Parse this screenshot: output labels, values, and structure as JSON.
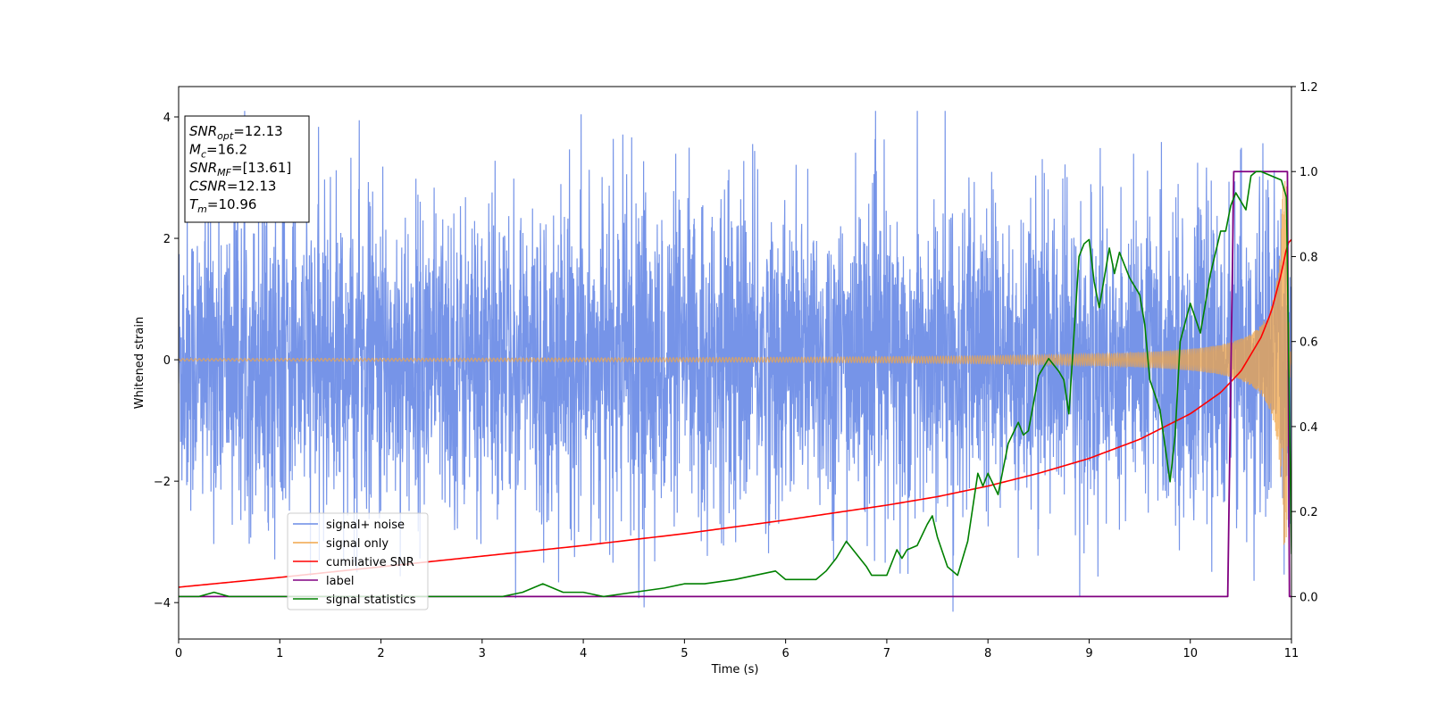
{
  "chart_data": {
    "type": "line",
    "xlabel": "Time (s)",
    "ylabel": "Whitened strain",
    "xlim": [
      0,
      11
    ],
    "ylim": [
      -4.6,
      4.5
    ],
    "y2lim": [
      -0.1,
      1.2
    ],
    "grid": false,
    "legend_position": "lower-left",
    "x_ticks": [
      "0",
      "1",
      "2",
      "3",
      "4",
      "5",
      "6",
      "7",
      "8",
      "9",
      "10",
      "11"
    ],
    "y_ticks": [
      "-4",
      "-2",
      "0",
      "2",
      "4"
    ],
    "y2_ticks": [
      "0.0",
      "0.2",
      "0.4",
      "0.6",
      "0.8",
      "1.0",
      "1.2"
    ],
    "info_box": [
      {
        "base": "SNR",
        "sub": "opt",
        "rest": "=12.13"
      },
      {
        "base": "M",
        "sub": "c",
        "rest": "=16.2"
      },
      {
        "base": "SNR",
        "sub": "MF",
        "rest": "=[13.61]"
      },
      {
        "base": "CSNR",
        "sub": "",
        "rest": "=12.13"
      },
      {
        "base": "T",
        "sub": "m",
        "rest": "=10.96"
      }
    ],
    "series": [
      {
        "name": "signal+ noise",
        "color": "#6a8be6",
        "axis": "left",
        "envelope": {
          "band_sigma": 1.25,
          "spike_max": 4.1,
          "spike_min": -4.15
        }
      },
      {
        "name": "signal only",
        "color": "#f0a64a",
        "axis": "left",
        "chirp": {
          "amp_start": 0.02,
          "amp_end": 3.05,
          "t_merger": 10.96
        }
      },
      {
        "name": "cumilative SNR",
        "color": "#ff0000",
        "axis": "right",
        "x": [
          0,
          1,
          2,
          3,
          4,
          5,
          6,
          7,
          7.5,
          8,
          8.5,
          9,
          9.5,
          10,
          10.3,
          10.5,
          10.7,
          10.8,
          10.9,
          10.96,
          11
        ],
        "y": [
          0.022,
          0.045,
          0.07,
          0.095,
          0.12,
          0.148,
          0.18,
          0.215,
          0.235,
          0.26,
          0.29,
          0.325,
          0.37,
          0.43,
          0.48,
          0.53,
          0.61,
          0.67,
          0.76,
          0.83,
          0.84
        ]
      },
      {
        "name": "label",
        "color": "#800080",
        "axis": "right",
        "x": [
          0,
          10.37,
          10.43,
          10.96,
          10.98,
          11
        ],
        "y": [
          0,
          0,
          1,
          1,
          0,
          0
        ]
      },
      {
        "name": "signal statistics",
        "color": "#008000",
        "axis": "right",
        "x": [
          0,
          0.2,
          0.35,
          0.5,
          0.8,
          1.2,
          1.6,
          2.0,
          2.4,
          2.8,
          3.0,
          3.2,
          3.4,
          3.6,
          3.7,
          3.8,
          4.0,
          4.2,
          4.5,
          4.8,
          5.0,
          5.2,
          5.5,
          5.7,
          5.9,
          6.0,
          6.1,
          6.3,
          6.4,
          6.5,
          6.6,
          6.7,
          6.8,
          6.85,
          6.9,
          7.0,
          7.1,
          7.15,
          7.2,
          7.3,
          7.4,
          7.45,
          7.5,
          7.6,
          7.7,
          7.8,
          7.9,
          7.95,
          8.0,
          8.1,
          8.2,
          8.3,
          8.35,
          8.4,
          8.5,
          8.6,
          8.7,
          8.75,
          8.8,
          8.9,
          8.95,
          9.0,
          9.05,
          9.1,
          9.2,
          9.25,
          9.3,
          9.4,
          9.5,
          9.55,
          9.6,
          9.7,
          9.8,
          9.85,
          9.9,
          10.0,
          10.1,
          10.2,
          10.3,
          10.35,
          10.4,
          10.45,
          10.5,
          10.55,
          10.6,
          10.65,
          10.7,
          10.8,
          10.9,
          10.95,
          11.0
        ],
        "y": [
          0.0,
          0.0,
          0.01,
          0.0,
          0.0,
          0.0,
          0.0,
          0.0,
          0.0,
          0.0,
          0.0,
          0.0,
          0.01,
          0.03,
          0.02,
          0.01,
          0.01,
          0.0,
          0.01,
          0.02,
          0.03,
          0.03,
          0.04,
          0.05,
          0.06,
          0.04,
          0.04,
          0.04,
          0.06,
          0.09,
          0.13,
          0.1,
          0.07,
          0.05,
          0.05,
          0.05,
          0.11,
          0.09,
          0.11,
          0.12,
          0.17,
          0.19,
          0.14,
          0.07,
          0.05,
          0.13,
          0.29,
          0.26,
          0.29,
          0.24,
          0.36,
          0.41,
          0.38,
          0.39,
          0.52,
          0.56,
          0.53,
          0.51,
          0.43,
          0.8,
          0.83,
          0.84,
          0.74,
          0.68,
          0.82,
          0.76,
          0.81,
          0.75,
          0.71,
          0.64,
          0.51,
          0.44,
          0.27,
          0.38,
          0.6,
          0.69,
          0.62,
          0.76,
          0.86,
          0.86,
          0.92,
          0.95,
          0.93,
          0.91,
          0.99,
          1.0,
          1.0,
          0.99,
          0.98,
          0.94,
          0.1
        ]
      }
    ]
  }
}
